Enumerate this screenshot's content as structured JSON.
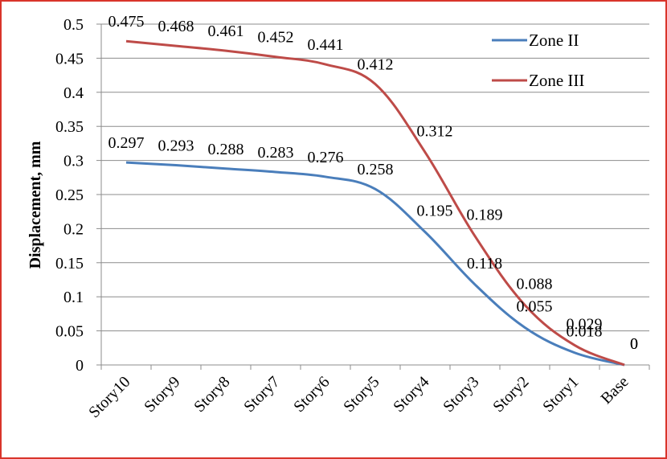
{
  "chart_data": {
    "type": "line",
    "title": "",
    "xlabel": "",
    "ylabel": "Displacement, mm",
    "categories": [
      "Story10",
      "Story9",
      "Story8",
      "Story7",
      "Story6",
      "Story5",
      "Story4",
      "Story3",
      "Story2",
      "Story1",
      "Base"
    ],
    "ylim": [
      0,
      0.5
    ],
    "yticks": [
      "0",
      "0.05",
      "0.1",
      "0.15",
      "0.2",
      "0.25",
      "0.3",
      "0.35",
      "0.4",
      "0.45",
      "0.5"
    ],
    "grid": "horizontal",
    "legend": "top-right",
    "series": [
      {
        "name": "Zone II",
        "color": "#4a7ebb",
        "values": [
          0.297,
          0.293,
          0.288,
          0.283,
          0.276,
          0.258,
          0.195,
          0.118,
          0.055,
          0.018,
          0
        ],
        "labels": [
          "0.297",
          "0.293",
          "0.288",
          "0.283",
          "0.276",
          "0.258",
          "0.195",
          "0.118",
          "0.055",
          "0.018",
          "0"
        ]
      },
      {
        "name": "Zone III",
        "color": "#be4b48",
        "values": [
          0.475,
          0.468,
          0.461,
          0.452,
          0.441,
          0.412,
          0.312,
          0.189,
          0.088,
          0.029,
          0
        ],
        "labels": [
          "0.475",
          "0.468",
          "0.461",
          "0.452",
          "0.441",
          "0.412",
          "0.312",
          "0.189",
          "0.088",
          "0.029",
          "0"
        ]
      }
    ]
  }
}
